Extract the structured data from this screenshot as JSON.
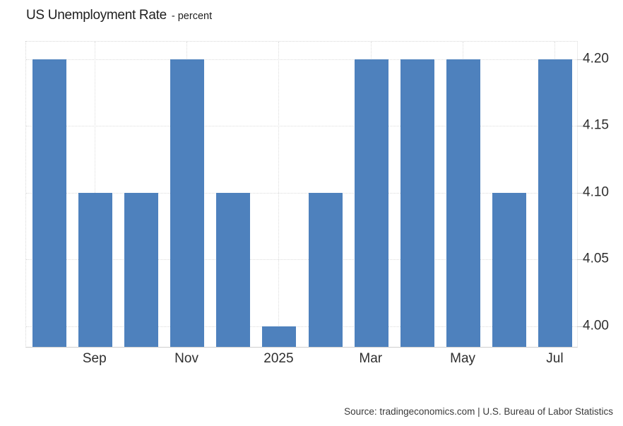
{
  "header": {
    "title": "US Unemployment Rate",
    "subtitle": "- percent"
  },
  "footer": {
    "source": "Source: tradingeconomics.com | U.S. Bureau of Labor Statistics"
  },
  "colors": {
    "bar": "#4e81bd",
    "grid": "#dcdcdc",
    "border": "#d6d6d6",
    "baseline": "#cfcfcf",
    "axis_text": "#2e2e2e",
    "title_text": "#1f1f1f",
    "source_text": "#3a3a3a"
  },
  "chart_data": {
    "type": "bar",
    "title": "US Unemployment Rate",
    "unit": "percent",
    "categories": [
      "",
      "Sep",
      "",
      "Nov",
      "",
      "2025",
      "",
      "Mar",
      "",
      "May",
      "",
      "Jul"
    ],
    "values": [
      4.2,
      4.1,
      4.1,
      4.2,
      4.1,
      4.0,
      4.1,
      4.2,
      4.2,
      4.2,
      4.1,
      4.2
    ],
    "x_tick_labels": [
      "Sep",
      "Nov",
      "2025",
      "Mar",
      "May",
      "Jul"
    ],
    "x_tick_indices": [
      1,
      3,
      5,
      7,
      9,
      11
    ],
    "y_ticks": [
      "4.00",
      "4.05",
      "4.10",
      "4.15",
      "4.20"
    ],
    "y_axis_side": "right",
    "ylim": [
      3.984,
      4.2135
    ],
    "grid": true,
    "legend": "none",
    "source": "Source: tradingeconomics.com | U.S. Bureau of Labor Statistics"
  }
}
